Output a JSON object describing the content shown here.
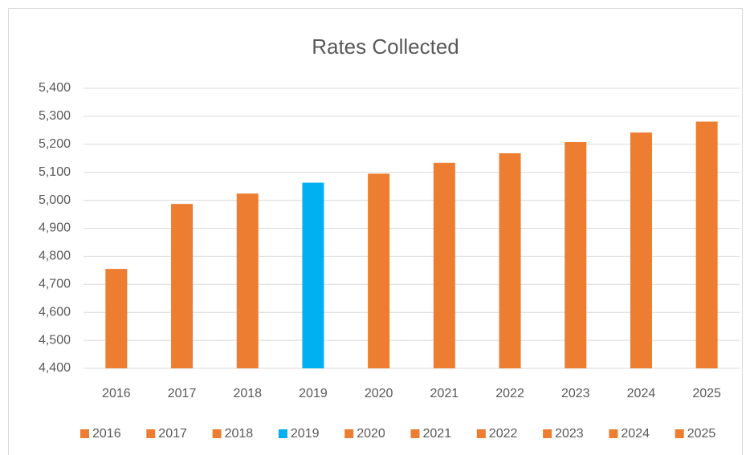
{
  "chart_data": {
    "type": "bar",
    "title": "Rates Collected",
    "categories": [
      "2016",
      "2017",
      "2018",
      "2019",
      "2020",
      "2021",
      "2022",
      "2023",
      "2024",
      "2025"
    ],
    "values": [
      4755,
      4987,
      5024,
      5063,
      5095,
      5134,
      5168,
      5208,
      5242,
      5281
    ],
    "colors": [
      "#ed7d31",
      "#ed7d31",
      "#ed7d31",
      "#00b0f0",
      "#ed7d31",
      "#ed7d31",
      "#ed7d31",
      "#ed7d31",
      "#ed7d31",
      "#ed7d31"
    ],
    "ylim": [
      4400,
      5400
    ],
    "yticks": [
      {
        "value": 4400,
        "label": "4,400"
      },
      {
        "value": 4500,
        "label": "4,500"
      },
      {
        "value": 4600,
        "label": "4,600"
      },
      {
        "value": 4700,
        "label": "4,700"
      },
      {
        "value": 4800,
        "label": "4,800"
      },
      {
        "value": 4900,
        "label": "4,900"
      },
      {
        "value": 5000,
        "label": "5,000"
      },
      {
        "value": 5100,
        "label": "5,100"
      },
      {
        "value": 5200,
        "label": "5,200"
      },
      {
        "value": 5300,
        "label": "5,300"
      },
      {
        "value": 5400,
        "label": "5,400"
      }
    ],
    "grid": true,
    "legend": "bottom"
  }
}
